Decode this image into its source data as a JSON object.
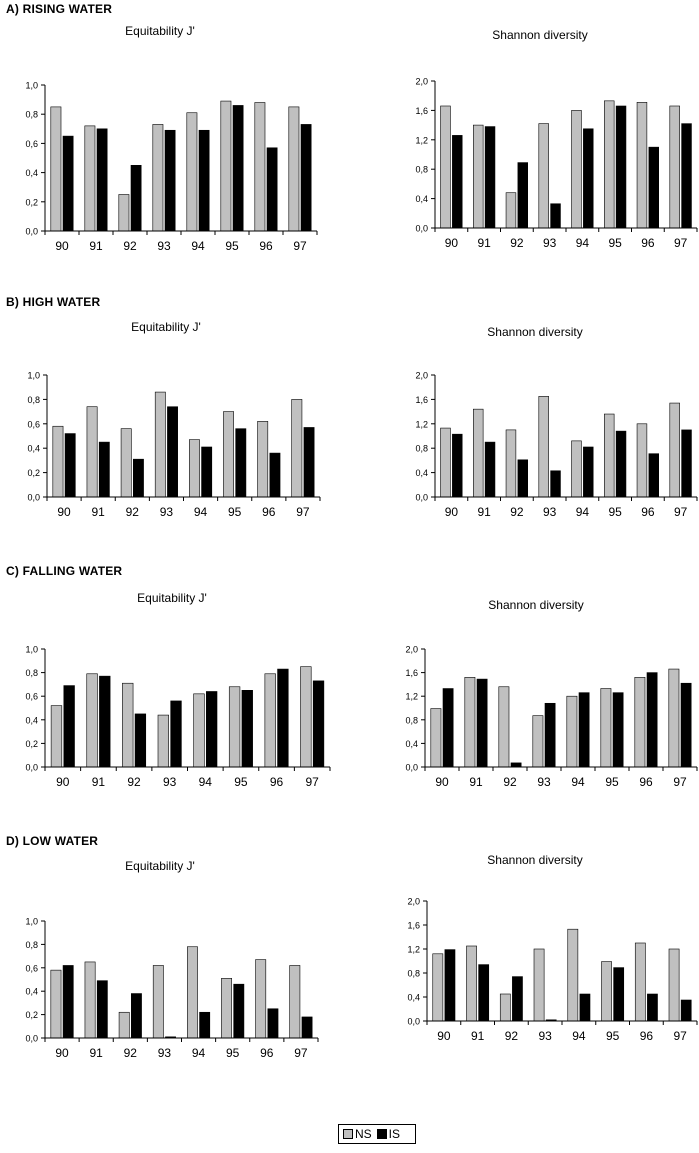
{
  "legend": {
    "ns_label": "NS",
    "is_label": "IS"
  },
  "colors": {
    "ns": "#c0c0c0",
    "is": "#000000"
  },
  "sections": [
    {
      "title": "A) RISING WATER"
    },
    {
      "title": "B) HIGH WATER"
    },
    {
      "title": "C) FALLING WATER"
    },
    {
      "title": "D) LOW WATER"
    }
  ],
  "chart_data": [
    {
      "id": "A-eq",
      "type": "bar",
      "title": "Equitability J'",
      "categories": [
        "90",
        "91",
        "92",
        "93",
        "94",
        "95",
        "96",
        "97"
      ],
      "ylim": [
        0,
        1.0
      ],
      "yticks": [
        "0,0",
        "0,2",
        "0,4",
        "0,6",
        "0,8",
        "1,0"
      ],
      "series": [
        {
          "name": "NS",
          "values": [
            0.85,
            0.72,
            0.25,
            0.73,
            0.81,
            0.89,
            0.88,
            0.85
          ]
        },
        {
          "name": "IS",
          "values": [
            0.65,
            0.7,
            0.45,
            0.69,
            0.69,
            0.86,
            0.57,
            0.73
          ]
        }
      ]
    },
    {
      "id": "A-sh",
      "type": "bar",
      "title": "Shannon diversity",
      "categories": [
        "90",
        "91",
        "92",
        "93",
        "94",
        "95",
        "96",
        "97"
      ],
      "ylim": [
        0,
        2.0
      ],
      "yticks": [
        "0,0",
        "0,4",
        "0,8",
        "1,2",
        "1,6",
        "2,0"
      ],
      "series": [
        {
          "name": "NS",
          "values": [
            1.66,
            1.4,
            0.48,
            1.42,
            1.6,
            1.73,
            1.71,
            1.66
          ]
        },
        {
          "name": "IS",
          "values": [
            1.26,
            1.38,
            0.89,
            0.33,
            1.35,
            1.66,
            1.1,
            1.42
          ]
        }
      ]
    },
    {
      "id": "B-eq",
      "type": "bar",
      "title": "Equitability J'",
      "categories": [
        "90",
        "91",
        "92",
        "93",
        "94",
        "95",
        "96",
        "97"
      ],
      "ylim": [
        0,
        1.0
      ],
      "yticks": [
        "0,0",
        "0,2",
        "0,4",
        "0,6",
        "0,8",
        "1,0"
      ],
      "series": [
        {
          "name": "NS",
          "values": [
            0.58,
            0.74,
            0.56,
            0.86,
            0.47,
            0.7,
            0.62,
            0.8
          ]
        },
        {
          "name": "IS",
          "values": [
            0.52,
            0.45,
            0.31,
            0.74,
            0.41,
            0.56,
            0.36,
            0.57
          ]
        }
      ]
    },
    {
      "id": "B-sh",
      "type": "bar",
      "title": "Shannon diversity",
      "categories": [
        "90",
        "91",
        "92",
        "93",
        "94",
        "95",
        "96",
        "97"
      ],
      "ylim": [
        0,
        2.0
      ],
      "yticks": [
        "0,0",
        "0,4",
        "0,8",
        "1,2",
        "1,6",
        "2,0"
      ],
      "series": [
        {
          "name": "NS",
          "values": [
            1.13,
            1.44,
            1.1,
            1.65,
            0.92,
            1.36,
            1.2,
            1.54
          ]
        },
        {
          "name": "IS",
          "values": [
            1.03,
            0.9,
            0.61,
            0.43,
            0.82,
            1.08,
            0.71,
            1.1
          ]
        }
      ]
    },
    {
      "id": "C-eq",
      "type": "bar",
      "title": "Equitability J'",
      "categories": [
        "90",
        "91",
        "92",
        "93",
        "94",
        "95",
        "96",
        "97"
      ],
      "ylim": [
        0,
        1.0
      ],
      "yticks": [
        "0,0",
        "0,2",
        "0,4",
        "0,6",
        "0,8",
        "1,0"
      ],
      "series": [
        {
          "name": "NS",
          "values": [
            0.52,
            0.79,
            0.71,
            0.44,
            0.62,
            0.68,
            0.79,
            0.85
          ]
        },
        {
          "name": "IS",
          "values": [
            0.69,
            0.77,
            0.45,
            0.56,
            0.64,
            0.65,
            0.83,
            0.73
          ]
        }
      ]
    },
    {
      "id": "C-sh",
      "type": "bar",
      "title": "Shannon diversity",
      "categories": [
        "90",
        "91",
        "92",
        "93",
        "94",
        "95",
        "96",
        "97"
      ],
      "ylim": [
        0,
        2.0
      ],
      "yticks": [
        "0,0",
        "0,4",
        "0,8",
        "1,2",
        "1,6",
        "2,0"
      ],
      "series": [
        {
          "name": "NS",
          "values": [
            0.99,
            1.52,
            1.36,
            0.87,
            1.2,
            1.33,
            1.52,
            1.66
          ]
        },
        {
          "name": "IS",
          "values": [
            1.33,
            1.49,
            0.07,
            1.08,
            1.26,
            1.26,
            1.6,
            1.42
          ]
        }
      ]
    },
    {
      "id": "D-eq",
      "type": "bar",
      "title": "Equitability J'",
      "categories": [
        "90",
        "91",
        "92",
        "93",
        "94",
        "95",
        "96",
        "97"
      ],
      "ylim": [
        0,
        1.0
      ],
      "yticks": [
        "0,0",
        "0,2",
        "0,4",
        "0,6",
        "0,8",
        "1,0"
      ],
      "series": [
        {
          "name": "NS",
          "values": [
            0.58,
            0.65,
            0.22,
            0.62,
            0.78,
            0.51,
            0.67,
            0.62
          ]
        },
        {
          "name": "IS",
          "values": [
            0.62,
            0.49,
            0.38,
            0.01,
            0.22,
            0.46,
            0.25,
            0.18
          ]
        }
      ]
    },
    {
      "id": "D-sh",
      "type": "bar",
      "title": "Shannon diversity",
      "categories": [
        "90",
        "91",
        "92",
        "93",
        "94",
        "95",
        "96",
        "97"
      ],
      "ylim": [
        0,
        2.0
      ],
      "yticks": [
        "0,0",
        "0,4",
        "0,8",
        "1,2",
        "1,6",
        "2,0"
      ],
      "series": [
        {
          "name": "NS",
          "values": [
            1.12,
            1.25,
            0.45,
            1.2,
            1.53,
            0.99,
            1.3,
            1.2
          ]
        },
        {
          "name": "IS",
          "values": [
            1.19,
            0.94,
            0.74,
            0.02,
            0.45,
            0.89,
            0.45,
            0.35
          ]
        }
      ]
    }
  ]
}
